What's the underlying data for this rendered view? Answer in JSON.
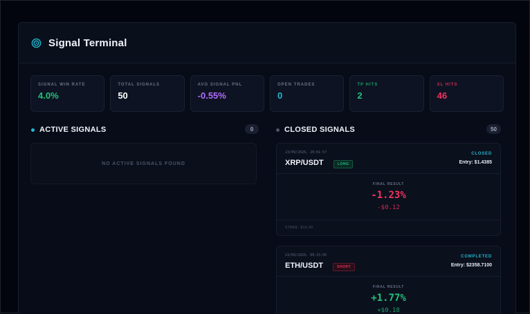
{
  "app": {
    "title": "Signal Terminal"
  },
  "stats": [
    {
      "label": "SIGNAL WIN RATE",
      "value": "4.0%",
      "color": "#22c07a",
      "label_color": "#6a7387"
    },
    {
      "label": "TOTAL SIGNALS",
      "value": "50",
      "color": "#ffffff",
      "label_color": "#6a7387"
    },
    {
      "label": "AVG SIGNAL PNL",
      "value": "-0.55%",
      "color": "#b36bff",
      "label_color": "#6a7387"
    },
    {
      "label": "OPEN TRADES",
      "value": "0",
      "color": "#22b8cf",
      "label_color": "#6a7387"
    },
    {
      "label": "TP HITS",
      "value": "2",
      "color": "#22c07a",
      "label_color": "#1e9d6a"
    },
    {
      "label": "SL HITS",
      "value": "46",
      "color": "#f0335f",
      "label_color": "#d02a52"
    }
  ],
  "active": {
    "title": "ACTIVE SIGNALS",
    "count": "0",
    "empty_text": "NO ACTIVE SIGNALS FOUND"
  },
  "closed": {
    "title": "CLOSED SIGNALS",
    "count": "50",
    "final_result_label": "FINAL RESULT",
    "cards": [
      {
        "date": "23/09/2026, 20:01:57",
        "pair": "XRP/USDT",
        "side": "LONG",
        "status": "CLOSED",
        "entry": "Entry: $1.4385",
        "pct": "-1.23%",
        "usd": "-$0.12",
        "stake": "STAKE: $10.00",
        "pct_color": "#f0335f",
        "usd_color": "#d02a52"
      },
      {
        "date": "23/09/2026, 00:15:05",
        "pair": "ETH/USDT",
        "side": "SHORT",
        "status": "COMPLETED",
        "entry": "Entry: $2358.7100",
        "pct": "+1.77%",
        "usd": "+$0.18",
        "pct_color": "#22c07a",
        "usd_color": "#1e9d6a"
      }
    ]
  },
  "icons": {
    "logo": "target-icon"
  },
  "colors": {
    "accent": "#22b8cf"
  }
}
